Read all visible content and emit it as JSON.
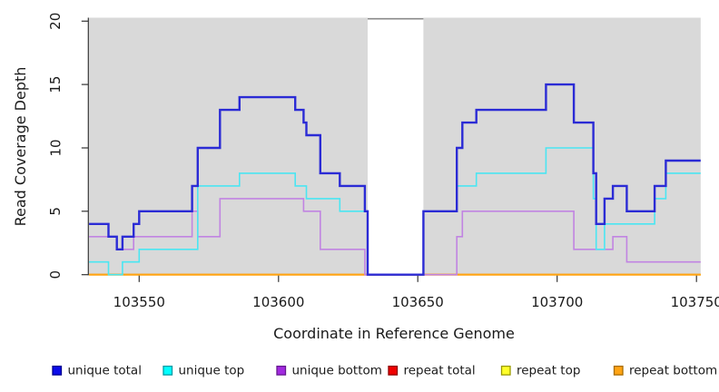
{
  "axes": {
    "xlabel": "Coordinate in Reference Genome",
    "ylabel": "Read Coverage Depth",
    "x_ticks": [
      103550,
      103600,
      103650,
      103700,
      103750
    ],
    "y_ticks": [
      0,
      5,
      10,
      15,
      20
    ],
    "x_range": [
      103532,
      103751.5
    ],
    "y_range": [
      0,
      20
    ]
  },
  "panel": {
    "background": "#d9d9d9",
    "shaded_regions": [
      [
        103532,
        103632
      ],
      [
        103652,
        103751.5
      ]
    ],
    "gap_region": [
      103632,
      103652
    ],
    "gap_top_border_color": "#8a8a8a"
  },
  "chart_data": {
    "type": "line",
    "subtype": "step-coverage",
    "title": "",
    "xlabel": "Coordinate in Reference Genome",
    "ylabel": "Read Coverage Depth",
    "xlim": [
      103532,
      103751.5
    ],
    "ylim": [
      0,
      20
    ],
    "grid": "off",
    "legend_position": "bottom",
    "end_x": 103751.5,
    "series": [
      {
        "name": "unique total",
        "color": "#2b2bd5",
        "line_width": 2.4,
        "points": [
          [
            103532,
            4
          ],
          [
            103539,
            3
          ],
          [
            103542,
            2
          ],
          [
            103544,
            3
          ],
          [
            103548,
            4
          ],
          [
            103550,
            5
          ],
          [
            103569,
            7
          ],
          [
            103571,
            10
          ],
          [
            103579,
            13
          ],
          [
            103586,
            14
          ],
          [
            103606,
            13
          ],
          [
            103609,
            12
          ],
          [
            103610,
            11
          ],
          [
            103615,
            8
          ],
          [
            103622,
            7
          ],
          [
            103631,
            5
          ],
          [
            103632,
            0
          ],
          [
            103652,
            5
          ],
          [
            103664,
            10
          ],
          [
            103666,
            12
          ],
          [
            103671,
            13
          ],
          [
            103696,
            15
          ],
          [
            103706,
            12
          ],
          [
            103713,
            8
          ],
          [
            103714,
            4
          ],
          [
            103717,
            6
          ],
          [
            103720,
            7
          ],
          [
            103725,
            5
          ],
          [
            103735,
            7
          ],
          [
            103739,
            9
          ]
        ]
      },
      {
        "name": "unique top",
        "color": "#4ae6f2",
        "line_width": 1.6,
        "points": [
          [
            103532,
            1
          ],
          [
            103539,
            0
          ],
          [
            103544,
            1
          ],
          [
            103550,
            2
          ],
          [
            103571,
            7
          ],
          [
            103586,
            8
          ],
          [
            103606,
            7
          ],
          [
            103610,
            6
          ],
          [
            103622,
            5
          ],
          [
            103632,
            0
          ],
          [
            103652,
            5
          ],
          [
            103664,
            7
          ],
          [
            103671,
            8
          ],
          [
            103696,
            10
          ],
          [
            103713,
            6
          ],
          [
            103714,
            2
          ],
          [
            103717,
            4
          ],
          [
            103735,
            6
          ],
          [
            103739,
            8
          ]
        ]
      },
      {
        "name": "unique bottom",
        "color": "#c184e2",
        "line_width": 1.6,
        "points": [
          [
            103532,
            3
          ],
          [
            103542,
            2
          ],
          [
            103548,
            3
          ],
          [
            103569,
            5
          ],
          [
            103571,
            3
          ],
          [
            103579,
            6
          ],
          [
            103609,
            5
          ],
          [
            103615,
            2
          ],
          [
            103631,
            0
          ],
          [
            103664,
            3
          ],
          [
            103666,
            5
          ],
          [
            103706,
            2
          ],
          [
            103720,
            3
          ],
          [
            103725,
            1
          ]
        ]
      },
      {
        "name": "repeat total",
        "color": "#e00000",
        "line_width": 1.6,
        "points": [
          [
            103532,
            0
          ]
        ]
      },
      {
        "name": "repeat top",
        "color": "#ffff2a",
        "line_width": 1.6,
        "points": [
          [
            103532,
            0
          ]
        ]
      },
      {
        "name": "repeat bottom",
        "color": "#ffa414",
        "line_width": 2.2,
        "points": [
          [
            103532,
            0
          ]
        ]
      }
    ]
  },
  "legend": {
    "items": [
      {
        "label": "unique total",
        "fill": "#0b0bea",
        "border": "#000090"
      },
      {
        "label": "unique top",
        "fill": "#00ffff",
        "border": "#009aa4"
      },
      {
        "label": "unique bottom",
        "fill": "#a22ae0",
        "border": "#671a90"
      },
      {
        "label": "repeat total",
        "fill": "#f00000",
        "border": "#900000"
      },
      {
        "label": "repeat top",
        "fill": "#ffff2a",
        "border": "#9a9a00"
      },
      {
        "label": "repeat bottom",
        "fill": "#ffa414",
        "border": "#a86c00"
      }
    ]
  }
}
